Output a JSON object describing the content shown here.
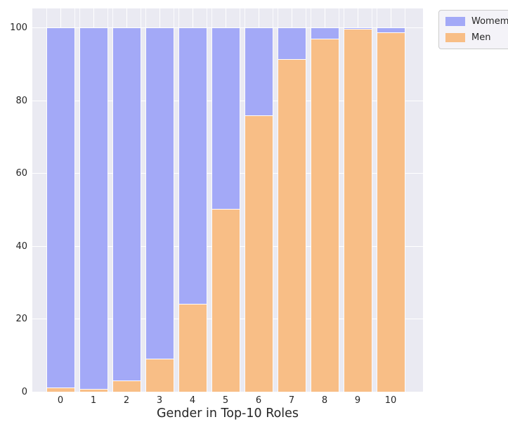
{
  "chart_data": {
    "type": "bar",
    "stacked": true,
    "title": "",
    "xlabel": "Gender in Top-10 Roles",
    "ylabel": "",
    "categories": [
      "0",
      "1",
      "2",
      "3",
      "4",
      "5",
      "6",
      "7",
      "8",
      "9",
      "10"
    ],
    "series": [
      {
        "name": "Men",
        "color": "#f8be86",
        "values": [
          1.1,
          0.6,
          3.0,
          8.9,
          24.1,
          50.2,
          76.0,
          91.4,
          96.9,
          99.6,
          98.8
        ]
      },
      {
        "name": "Womem",
        "color": "#a3a9f7",
        "values": [
          98.9,
          99.4,
          97.0,
          91.1,
          75.9,
          49.8,
          24.0,
          8.6,
          3.1,
          0.4,
          1.2
        ]
      }
    ],
    "legend_order": [
      "Womem",
      "Men"
    ],
    "bar_total": 100,
    "yticks": [
      0,
      20,
      40,
      60,
      80,
      100
    ],
    "ylim": [
      0,
      105.4
    ],
    "grid": true,
    "legend_position": "outside-upper-right",
    "colors": {
      "plot_background": "#eaeaf2",
      "grid": "#ffffff",
      "text": "#262626",
      "figure_background": "#ffffff",
      "legend_background": "#f4f3f8",
      "legend_border": "#cccccc"
    }
  }
}
